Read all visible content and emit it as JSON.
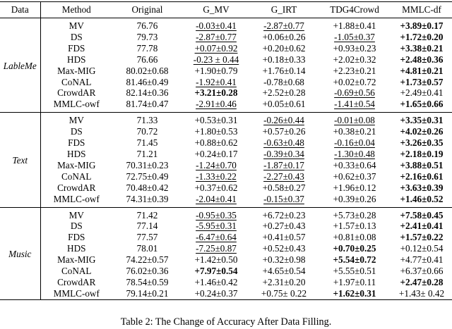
{
  "headers": [
    "Data",
    "Method",
    "Original",
    "G_MV",
    "G_IRT",
    "TDG4Crowd",
    "MMLC-df"
  ],
  "groups": [
    {
      "dataset": "LableMe",
      "rows": [
        {
          "method": "MV",
          "cells": [
            {
              "v": "76.76"
            },
            {
              "v": "-0.03±0.41",
              "u": true
            },
            {
              "v": "-2.87±0.77",
              "u": true
            },
            {
              "v": "+1.88±0.41"
            },
            {
              "v": "+3.89±0.17",
              "b": true
            }
          ]
        },
        {
          "method": "DS",
          "cells": [
            {
              "v": "79.73"
            },
            {
              "v": "-2.87±0.77",
              "u": true
            },
            {
              "v": "+0.06±0.26"
            },
            {
              "v": "-1.05±0.37",
              "u": true
            },
            {
              "v": "+1.72±0.20",
              "b": true
            }
          ]
        },
        {
          "method": "FDS",
          "cells": [
            {
              "v": "77.78"
            },
            {
              "v": "+0.07±0.92",
              "u": true
            },
            {
              "v": "+0.20±0.62"
            },
            {
              "v": "+0.93±0.23"
            },
            {
              "v": "+3.38±0.21",
              "b": true
            }
          ]
        },
        {
          "method": "HDS",
          "cells": [
            {
              "v": "76.66"
            },
            {
              "v": "-0.23 ± 0.44",
              "u": true
            },
            {
              "v": "+0.18±0.33"
            },
            {
              "v": "+2.02±0.32"
            },
            {
              "v": "+2.48±0.36",
              "b": true
            }
          ]
        },
        {
          "method": "Max-MIG",
          "cells": [
            {
              "v": "80.02±0.68"
            },
            {
              "v": "+1.90±0.79"
            },
            {
              "v": "+1.76±0.14"
            },
            {
              "v": "+2.23±0.21"
            },
            {
              "v": "+4.81±0.21",
              "b": true
            }
          ]
        },
        {
          "method": "CoNAL",
          "cells": [
            {
              "v": "81.46±0.49"
            },
            {
              "v": "-1.92±0.41",
              "u": true
            },
            {
              "v": "-0.78±0.68"
            },
            {
              "v": "+0.02±0.72"
            },
            {
              "v": "+1.73±0.57",
              "b": true
            }
          ]
        },
        {
          "method": "CrowdAR",
          "cells": [
            {
              "v": "82.14±0.36"
            },
            {
              "v": "+3.21±0.28",
              "b": true
            },
            {
              "v": "+2.52±0.28"
            },
            {
              "v": "-0.69±0.56",
              "u": true
            },
            {
              "v": "+2.49±0.41"
            }
          ]
        },
        {
          "method": "MMLC-owf",
          "cells": [
            {
              "v": "81.74±0.47"
            },
            {
              "v": "-2.91±0.46",
              "u": true
            },
            {
              "v": "+0.05±0.61"
            },
            {
              "v": "-1.41±0.54",
              "u": true
            },
            {
              "v": "+1.65±0.66",
              "b": true
            }
          ]
        }
      ]
    },
    {
      "dataset": "Text",
      "rows": [
        {
          "method": "MV",
          "cells": [
            {
              "v": "71.33"
            },
            {
              "v": "+0.53±0.31"
            },
            {
              "v": "-0.26±0.44",
              "u": true
            },
            {
              "v": "-0.01±0.08",
              "u": true
            },
            {
              "v": "+3.35±0.31",
              "b": true
            }
          ]
        },
        {
          "method": "DS",
          "cells": [
            {
              "v": "70.72"
            },
            {
              "v": "+1.80±0.53"
            },
            {
              "v": "+0.57±0.26"
            },
            {
              "v": "+0.38±0.21"
            },
            {
              "v": "+4.02±0.26",
              "b": true
            }
          ]
        },
        {
          "method": "FDS",
          "cells": [
            {
              "v": "71.45"
            },
            {
              "v": "+0.88±0.62"
            },
            {
              "v": "-0.63±0.48",
              "u": true
            },
            {
              "v": "-0.16±0.04",
              "u": true
            },
            {
              "v": "+3.26±0.35",
              "b": true
            }
          ]
        },
        {
          "method": "HDS",
          "cells": [
            {
              "v": "71.21"
            },
            {
              "v": "+0.24±0.17"
            },
            {
              "v": "-0.39±0.34",
              "u": true
            },
            {
              "v": "-1.30±0.48",
              "u": true
            },
            {
              "v": "+2.18±0.19",
              "b": true
            }
          ]
        },
        {
          "method": "Max-MIG",
          "cells": [
            {
              "v": "70.31±0.23"
            },
            {
              "v": "-1.24±0.70",
              "u": true
            },
            {
              "v": "-1.87±0.17",
              "u": true
            },
            {
              "v": "+0.33±0.64"
            },
            {
              "v": "+3.88±0.51",
              "b": true
            }
          ]
        },
        {
          "method": "CoNAL",
          "cells": [
            {
              "v": "72.75±0.49"
            },
            {
              "v": "-1.33±0.22",
              "u": true
            },
            {
              "v": "-2.27±0.43",
              "u": true
            },
            {
              "v": "+0.62±0.37"
            },
            {
              "v": "+2.16±0.61",
              "b": true
            }
          ]
        },
        {
          "method": "CrowdAR",
          "cells": [
            {
              "v": "70.48±0.42"
            },
            {
              "v": "+0.37±0.62"
            },
            {
              "v": "+0.58±0.27"
            },
            {
              "v": "+1.96±0.12"
            },
            {
              "v": "+3.63±0.39",
              "b": true
            }
          ]
        },
        {
          "method": "MMLC-owf",
          "cells": [
            {
              "v": "74.31±0.39"
            },
            {
              "v": "-2.04±0.41",
              "u": true
            },
            {
              "v": "-0.15±0.37",
              "u": true
            },
            {
              "v": "+0.39±0.26"
            },
            {
              "v": "+1.46±0.52",
              "b": true
            }
          ]
        }
      ]
    },
    {
      "dataset": "Music",
      "rows": [
        {
          "method": "MV",
          "cells": [
            {
              "v": "71.42"
            },
            {
              "v": "-0.95±0.35",
              "u": true
            },
            {
              "v": "+6.72±0.23"
            },
            {
              "v": "+5.73±0.28"
            },
            {
              "v": "+7.58±0.45",
              "b": true
            }
          ]
        },
        {
          "method": "DS",
          "cells": [
            {
              "v": "77.14"
            },
            {
              "v": "-5.95±0.31",
              "u": true
            },
            {
              "v": "+0.27±0.43"
            },
            {
              "v": "+1.57±0.13"
            },
            {
              "v": "+2.41±0.41",
              "b": true
            }
          ]
        },
        {
          "method": "FDS",
          "cells": [
            {
              "v": "77.57"
            },
            {
              "v": "-6.47±0.64",
              "u": true
            },
            {
              "v": "+0.41±0.57"
            },
            {
              "v": "+0.81±0.08"
            },
            {
              "v": "+1.57±0.22",
              "b": true
            }
          ]
        },
        {
          "method": "HDS",
          "cells": [
            {
              "v": "78.01"
            },
            {
              "v": "-7.25±0.87",
              "u": true
            },
            {
              "v": "+0.52±0.43"
            },
            {
              "v": "+0.70±0.25",
              "b": true
            },
            {
              "v": "+0.12±0.54"
            }
          ]
        },
        {
          "method": "Max-MIG",
          "cells": [
            {
              "v": "74.22±0.57"
            },
            {
              "v": "+1.42±0.50"
            },
            {
              "v": "+0.32±0.98"
            },
            {
              "v": "+5.54±0.72",
              "b": true
            },
            {
              "v": "+4.77±0.41"
            }
          ]
        },
        {
          "method": "CoNAL",
          "cells": [
            {
              "v": "76.02±0.36"
            },
            {
              "v": "+7.97±0.54",
              "b": true
            },
            {
              "v": "+4.65±0.54"
            },
            {
              "v": "+5.55±0.51"
            },
            {
              "v": "+6.37±0.66"
            }
          ]
        },
        {
          "method": "CrowdAR",
          "cells": [
            {
              "v": "78.54±0.59"
            },
            {
              "v": "+1.46±0.42"
            },
            {
              "v": "+2.31±0.20"
            },
            {
              "v": "+1.97±0.11"
            },
            {
              "v": "+2.47±0.28",
              "b": true
            }
          ]
        },
        {
          "method": "MMLC-owf",
          "cells": [
            {
              "v": "79.14±0.21"
            },
            {
              "v": "+0.24±0.37"
            },
            {
              "v": "+0.75± 0.22"
            },
            {
              "v": "+1.62±0.31",
              "b": true
            },
            {
              "v": "+1.43± 0.42"
            }
          ]
        }
      ]
    }
  ],
  "caption": "Table 2: The Change of Accuracy After Data Filling."
}
